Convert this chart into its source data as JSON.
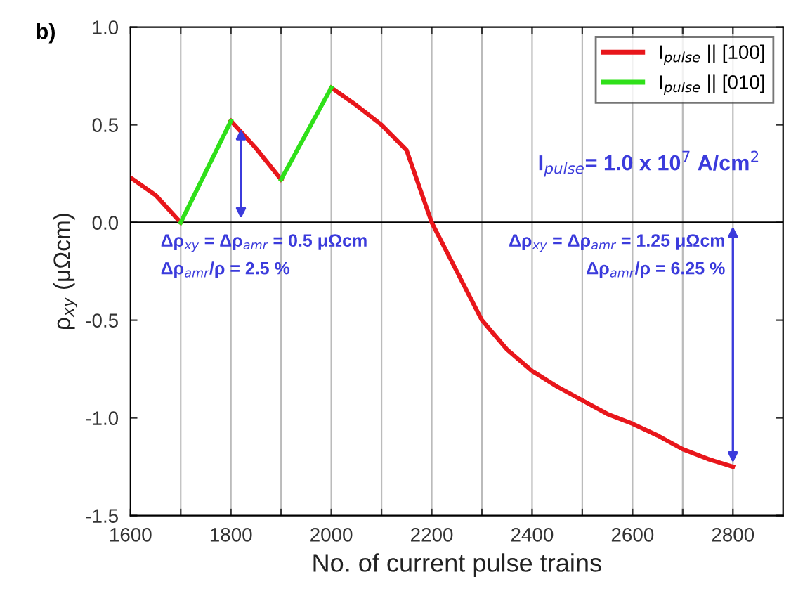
{
  "chart_data": {
    "type": "line",
    "xlabel": "No. of current pulse trains",
    "ylabel": "ρ$_{xy}$ (μΩcm)",
    "xlim": [
      1600,
      2900
    ],
    "ylim": [
      -1.5,
      1.0
    ],
    "xticks": [
      1600,
      {
        "value": 1700,
        "label": null
      },
      1800,
      {
        "value": 1900,
        "label": null
      },
      2000,
      {
        "value": 2100,
        "label": null
      },
      2200,
      {
        "value": 2300,
        "label": null
      },
      2400,
      {
        "value": 2500,
        "label": null
      },
      2600,
      {
        "value": 2700,
        "label": null
      },
      2800
    ],
    "yticks": [
      -1.5,
      {
        "value": -1,
        "label": "-1.0"
      },
      -0.5,
      {
        "value": 0,
        "label": "0.0"
      },
      0.5,
      {
        "value": 1,
        "label": "1.0"
      }
    ],
    "grid": "x",
    "legend": "top right",
    "line_style": "solid",
    "marker": "none",
    "series": [
      {
        "name": "I$_{pulse}$ || [100]",
        "color": "#e8161b",
        "x": [
          1600,
          1650,
          1700,
          1750,
          1800,
          1850,
          1900,
          1950,
          2000,
          2050,
          2100,
          2150,
          2200,
          2250,
          2300,
          2350,
          2400,
          2450,
          2500,
          2550,
          2600,
          2650,
          2700,
          2750,
          2800
        ],
        "values": [
          0.23,
          0.14,
          0.0,
          null,
          0.52,
          0.38,
          0.22,
          null,
          0.69,
          0.6,
          0.5,
          0.37,
          0.0,
          -0.25,
          -0.5,
          -0.65,
          -0.76,
          -0.84,
          -0.91,
          -0.98,
          -1.03,
          -1.09,
          -1.16,
          -1.21,
          -1.25
        ]
      },
      {
        "name": "I$_{pulse}$ || [010]",
        "color": "#2fe019",
        "x": [
          1700,
          1800,
          1850,
          1900,
          2000
        ],
        "values": [
          0.0,
          0.52,
          null,
          0.22,
          0.69
        ]
      }
    ],
    "ref_lines": [
      {
        "axis": "y",
        "value": 0,
        "color": "#000000"
      }
    ],
    "annotations": [
      "b)",
      "I$_{pulse}$= 1.0 x 10$^{7}$ A/cm$^{2}$",
      "Δρ$_{amr}$/ρ = 2.5 %",
      "Δρ$_{amr}$/ρ = 6.25 %",
      {
        "text": "Δρ$_{xy}$ = Δρ$_{amr}$ = 0.5 μΩcm",
        "x": 1820,
        "y": 0.5
      },
      {
        "text": "Δρ$_{xy}$ = Δρ$_{amr}$ = 1.25 μΩcm",
        "x": 2800,
        "y": -1.25
      }
    ]
  }
}
